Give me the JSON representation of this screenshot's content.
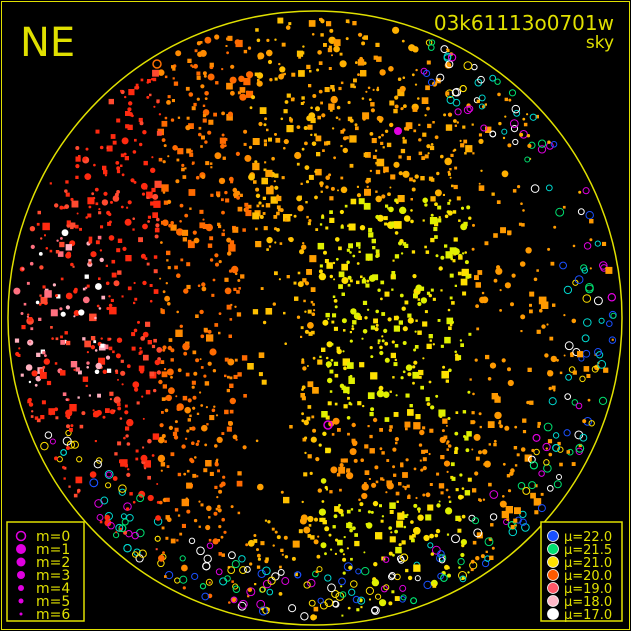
{
  "chart_data": {
    "type": "scatter",
    "orientation_label": "NE",
    "image_id_label": "03k61113o0701w",
    "subtitle": "sky",
    "grid": false,
    "size_legend": {
      "placement": "bottom-left",
      "entries": [
        "m=0",
        "m=1",
        "m=2",
        "m=3",
        "m=4",
        "m=5",
        "m=6"
      ],
      "marker_color": "#e000e0"
    },
    "color_legend": {
      "placement": "bottom-right",
      "entries": [
        {
          "label": "μ=22.0",
          "color": "#1a50ff"
        },
        {
          "label": "μ=21.5",
          "color": "#00e070"
        },
        {
          "label": "μ=21.0",
          "color": "#ffe000"
        },
        {
          "label": "μ=20.0",
          "color": "#ff5a00"
        },
        {
          "label": "μ=19.0",
          "color": "#ff5868"
        },
        {
          "label": "μ=18.0",
          "color": "#ffb8c8"
        },
        {
          "label": "μ=17.0",
          "color": "#ffffff"
        }
      ]
    },
    "frame_color": "#e0e000"
  }
}
